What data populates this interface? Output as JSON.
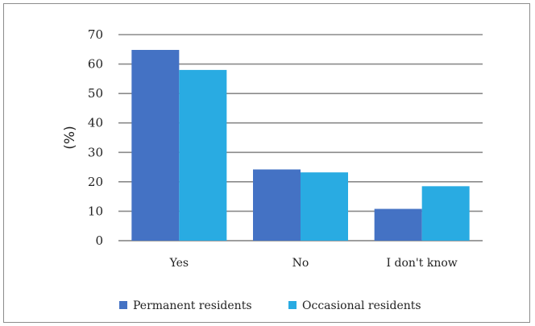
{
  "chart_data": {
    "type": "bar",
    "title": "",
    "xlabel": "",
    "ylabel": "(%)",
    "ylim": [
      0,
      70
    ],
    "yticks": [
      0,
      10,
      20,
      30,
      40,
      50,
      60,
      70
    ],
    "grid": true,
    "legend_position": "bottom",
    "categories": [
      "Yes",
      "No",
      "I don't know"
    ],
    "series": [
      {
        "name": "Permanent residents",
        "color": "#4472c4",
        "values": [
          64.8,
          24.2,
          10.8
        ]
      },
      {
        "name": "Occasional residents",
        "color": "#29abe2",
        "values": [
          58.0,
          23.2,
          18.5
        ]
      }
    ]
  }
}
